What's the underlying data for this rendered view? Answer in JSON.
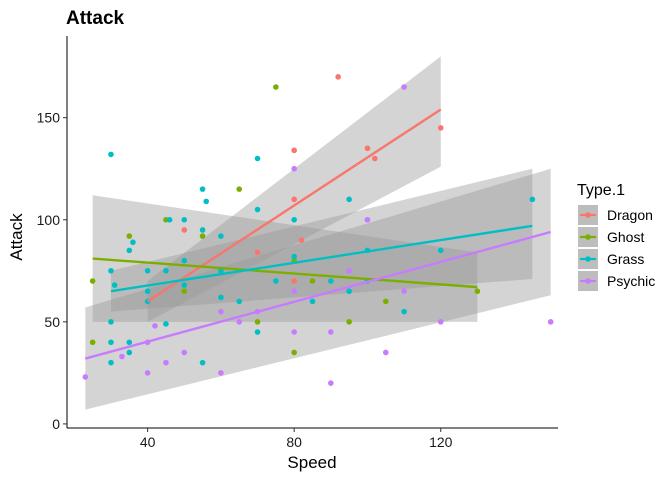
{
  "chart_data": {
    "type": "scatter",
    "title": "Attack",
    "xlabel": "Speed",
    "ylabel": "Attack",
    "xlim": [
      18,
      152
    ],
    "ylim": [
      -2,
      190
    ],
    "x_ticks": [
      40,
      80,
      120
    ],
    "y_ticks": [
      0,
      50,
      100,
      150
    ],
    "grid": false,
    "legend": {
      "title": "Type.1",
      "position": "right"
    },
    "series": [
      {
        "name": "Dragon",
        "color": "#F8766D",
        "points": [
          [
            92,
            170
          ],
          [
            120,
            145
          ],
          [
            102,
            130
          ],
          [
            100,
            135
          ],
          [
            80,
            134
          ],
          [
            80,
            110
          ],
          [
            82,
            90
          ],
          [
            50,
            95
          ],
          [
            70,
            84
          ],
          [
            80,
            70
          ]
        ],
        "fit": {
          "x": [
            40,
            120
          ],
          "y": [
            60,
            154
          ]
        },
        "ci_upper": [
          70,
          180
        ],
        "ci_lower": [
          50,
          126
        ]
      },
      {
        "name": "Ghost",
        "color": "#7CAE00",
        "points": [
          [
            75,
            165
          ],
          [
            65,
            115
          ],
          [
            45,
            100
          ],
          [
            35,
            92
          ],
          [
            25,
            70
          ],
          [
            25,
            40
          ],
          [
            50,
            65
          ],
          [
            55,
            92
          ],
          [
            80,
            80
          ],
          [
            85,
            70
          ],
          [
            95,
            50
          ],
          [
            105,
            60
          ],
          [
            70,
            50
          ],
          [
            80,
            35
          ],
          [
            130,
            65
          ]
        ],
        "fit": {
          "x": [
            25,
            130
          ],
          "y": [
            81,
            67
          ]
        },
        "ci_upper": [
          112,
          84
        ],
        "ci_lower": [
          50,
          50
        ]
      },
      {
        "name": "Grass",
        "color": "#00BFC4",
        "points": [
          [
            30,
            132
          ],
          [
            55,
            115
          ],
          [
            56,
            109
          ],
          [
            70,
            130
          ],
          [
            50,
            100
          ],
          [
            46,
            100
          ],
          [
            30,
            75
          ],
          [
            31,
            68
          ],
          [
            35,
            85
          ],
          [
            36,
            89
          ],
          [
            40,
            75
          ],
          [
            45,
            75
          ],
          [
            50,
            80
          ],
          [
            55,
            95
          ],
          [
            60,
            92
          ],
          [
            60,
            75
          ],
          [
            70,
            105
          ],
          [
            80,
            100
          ],
          [
            80,
            82
          ],
          [
            95,
            110
          ],
          [
            100,
            85
          ],
          [
            120,
            85
          ],
          [
            145,
            110
          ],
          [
            30,
            50
          ],
          [
            30,
            40
          ],
          [
            35,
            40
          ],
          [
            40,
            60
          ],
          [
            45,
            49
          ],
          [
            55,
            30
          ],
          [
            65,
            60
          ],
          [
            70,
            45
          ],
          [
            85,
            60
          ],
          [
            100,
            70
          ],
          [
            110,
            55
          ],
          [
            40,
            65
          ],
          [
            50,
            68
          ],
          [
            60,
            62
          ],
          [
            75,
            70
          ],
          [
            90,
            70
          ],
          [
            95,
            65
          ],
          [
            35,
            35
          ],
          [
            30,
            30
          ]
        ],
        "fit": {
          "x": [
            30,
            145
          ],
          "y": [
            65,
            97
          ]
        },
        "ci_upper": [
          75,
          125
        ],
        "ci_lower": [
          55,
          71
        ]
      },
      {
        "name": "Psychic",
        "color": "#C77CFF",
        "points": [
          [
            110,
            165
          ],
          [
            80,
            125
          ],
          [
            100,
            100
          ],
          [
            100,
            100
          ],
          [
            23,
            23
          ],
          [
            33,
            33
          ],
          [
            40,
            25
          ],
          [
            42,
            48
          ],
          [
            45,
            30
          ],
          [
            50,
            35
          ],
          [
            60,
            25
          ],
          [
            65,
            50
          ],
          [
            70,
            55
          ],
          [
            80,
            65
          ],
          [
            80,
            45
          ],
          [
            90,
            45
          ],
          [
            90,
            20
          ],
          [
            95,
            75
          ],
          [
            105,
            35
          ],
          [
            110,
            65
          ],
          [
            120,
            50
          ],
          [
            150,
            50
          ],
          [
            60,
            55
          ],
          [
            40,
            40
          ]
        ],
        "fit": {
          "x": [
            23,
            150
          ],
          "y": [
            32,
            94
          ]
        },
        "ci_upper": [
          57,
          125
        ],
        "ci_lower": [
          7,
          63
        ]
      }
    ]
  }
}
